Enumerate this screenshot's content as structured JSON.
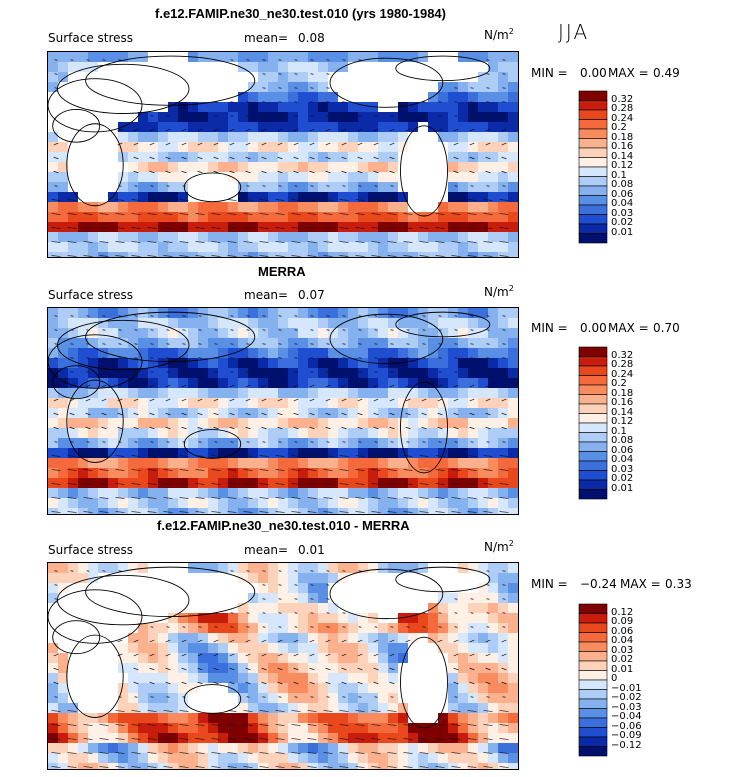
{
  "season": "JJA",
  "panels": [
    {
      "title": "f.e12.FAMIP.ne30_ne30.test.010 (yrs 1980-1984)",
      "field_label": "Surface stress",
      "mean_label": "mean=",
      "mean_value": "0.08",
      "units": "N/m",
      "units_exp": "2",
      "min_label": "MIN =",
      "min_value": "0.00",
      "max_label": "MAX =",
      "max_value": "0.49"
    },
    {
      "title": "MERRA",
      "field_label": "Surface stress",
      "mean_label": "mean=",
      "mean_value": "0.07",
      "units": "N/m",
      "units_exp": "2",
      "min_label": "MIN =",
      "min_value": "0.00",
      "max_label": "MAX =",
      "max_value": "0.70"
    },
    {
      "title": "f.e12.FAMIP.ne30_ne30.test.010 - MERRA",
      "field_label": "Surface stress",
      "mean_label": "mean=",
      "mean_value": "0.01",
      "units": "N/m",
      "units_exp": "2",
      "min_label": "MIN =",
      "min_value": "−0.24",
      "max_label": "MAX =",
      "max_value": "0.33"
    }
  ],
  "chart_data": [
    {
      "type": "heatmap",
      "title": "f.e12.FAMIP.ne30_ne30.test.010 (yrs 1980-1984)",
      "variable": "Surface stress",
      "units": "N/m2",
      "mean": 0.08,
      "min": 0.0,
      "max": 0.49,
      "colorbar_levels": [
        "0.32",
        "0.28",
        "0.24",
        "0.2",
        "0.18",
        "0.16",
        "0.14",
        "0.12",
        "0.1",
        "0.08",
        "0.06",
        "0.04",
        "0.03",
        "0.02",
        "0.01"
      ],
      "colorbar_colors": [
        "#7f0000",
        "#c81d0c",
        "#e8481c",
        "#f46a3c",
        "#f88c5e",
        "#fbb08e",
        "#fcd2ba",
        "#fff0e6",
        "#d6e6fb",
        "#aecdf6",
        "#86b1ef",
        "#5a8fe6",
        "#3a6fdc",
        "#1f4fd0",
        "#0a2aa8",
        "#00106e"
      ],
      "grid": false
    },
    {
      "type": "heatmap",
      "title": "MERRA",
      "variable": "Surface stress",
      "units": "N/m2",
      "mean": 0.07,
      "min": 0.0,
      "max": 0.7,
      "colorbar_levels": [
        "0.32",
        "0.28",
        "0.24",
        "0.2",
        "0.18",
        "0.16",
        "0.14",
        "0.12",
        "0.1",
        "0.08",
        "0.06",
        "0.04",
        "0.03",
        "0.02",
        "0.01"
      ],
      "colorbar_colors": [
        "#7f0000",
        "#c81d0c",
        "#e8481c",
        "#f46a3c",
        "#f88c5e",
        "#fbb08e",
        "#fcd2ba",
        "#fff0e6",
        "#d6e6fb",
        "#aecdf6",
        "#86b1ef",
        "#5a8fe6",
        "#3a6fdc",
        "#1f4fd0",
        "#0a2aa8",
        "#00106e"
      ],
      "grid": false
    },
    {
      "type": "heatmap",
      "title": "f.e12.FAMIP.ne30_ne30.test.010 - MERRA",
      "variable": "Surface stress",
      "units": "N/m2",
      "mean": 0.01,
      "min": -0.24,
      "max": 0.33,
      "colorbar_levels": [
        "0.12",
        "0.09",
        "0.06",
        "0.04",
        "0.03",
        "0.02",
        "0.01",
        "0",
        "−0.01",
        "−0.02",
        "−0.03",
        "−0.04",
        "−0.06",
        "−0.09",
        "−0.12"
      ],
      "colorbar_colors": [
        "#7f0000",
        "#c81d0c",
        "#e8481c",
        "#f46a3c",
        "#f88c5e",
        "#fbb08e",
        "#fcd2ba",
        "#fff0e6",
        "#d6e6fb",
        "#aecdf6",
        "#86b1ef",
        "#5a8fe6",
        "#3a6fdc",
        "#1f4fd0",
        "#0a2aa8",
        "#00106e"
      ],
      "grid": false
    }
  ]
}
